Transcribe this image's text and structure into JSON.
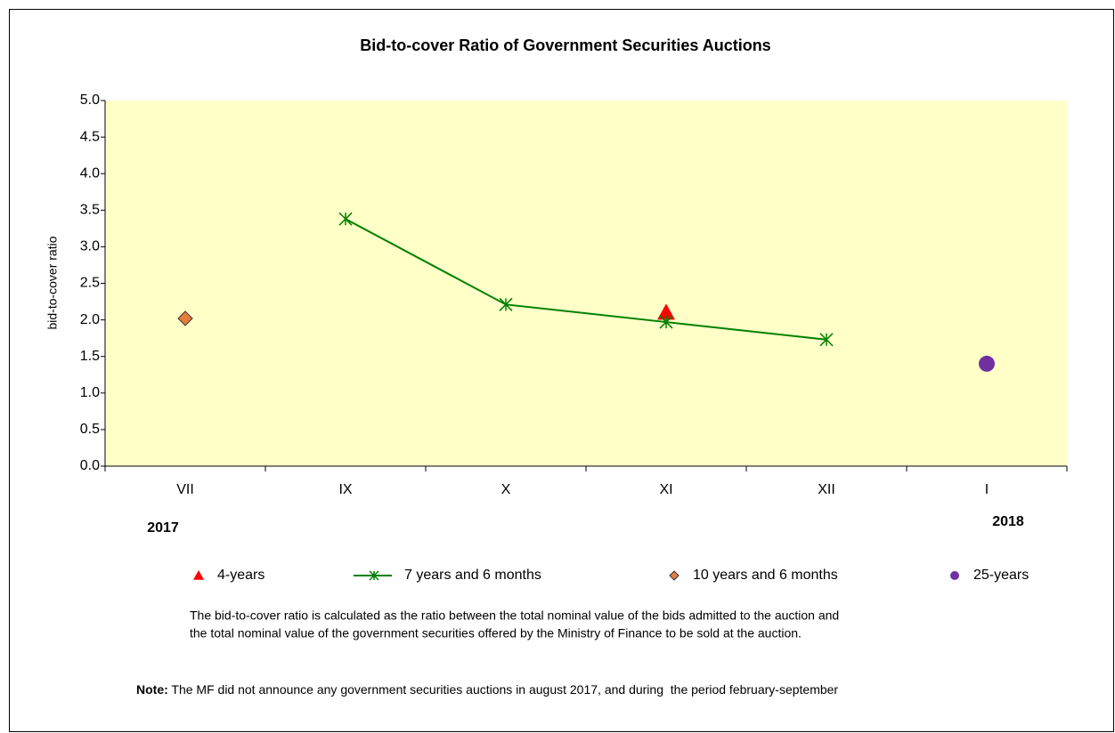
{
  "chart_data": {
    "type": "line",
    "title": "Bid-to-cover Ratio of Government Securities Auctions",
    "y_label": "bid-to-cover ratio",
    "categories": [
      "VII",
      "IX",
      "X",
      "XI",
      "XII",
      "I"
    ],
    "year_labels": [
      {
        "category": 0,
        "label": "2017"
      },
      {
        "category": 5,
        "label": "2018"
      }
    ],
    "series": [
      {
        "name": "4-years",
        "color": "#ff0000",
        "marker": "triangle",
        "line": false,
        "values": [
          null,
          null,
          null,
          2.1,
          null,
          null
        ]
      },
      {
        "name": "7 years and 6 months",
        "color": "#008000",
        "marker": "asterisk",
        "line": true,
        "values": [
          null,
          3.38,
          2.21,
          1.97,
          1.73,
          null
        ]
      },
      {
        "name": "10 years and 6 months",
        "color": "#e57d3c",
        "marker": "diamond",
        "line": false,
        "values": [
          2.02,
          null,
          null,
          null,
          null,
          null
        ]
      },
      {
        "name": "25-years",
        "color": "#7030a0",
        "marker": "circle",
        "line": false,
        "values": [
          null,
          null,
          null,
          null,
          null,
          1.4
        ]
      }
    ],
    "ylim": [
      0,
      5
    ],
    "yticks": [
      {
        "value": 0,
        "label": "0.0"
      },
      0.5,
      {
        "value": 1,
        "label": "1.0"
      },
      1.5,
      {
        "value": 2,
        "label": "2.0"
      },
      2.5,
      {
        "value": 3,
        "label": "3.0"
      },
      3.5,
      {
        "value": 4,
        "label": "4.0"
      },
      4.5,
      {
        "value": 5,
        "label": "5.0"
      }
    ],
    "grid": false,
    "plot_background": "#ffffc8",
    "footnote_lines": [
      "The bid-to-cover ratio is calculated as the ratio between the total nominal value of the bids admitted to the auction and",
      "the total nominal value of the government securities offered by the Ministry of Finance to be sold at the auction."
    ],
    "note": {
      "label": "Note:",
      "text": " The MF did not announce any government securities auctions in august 2017, and during  the period february-september"
    }
  }
}
